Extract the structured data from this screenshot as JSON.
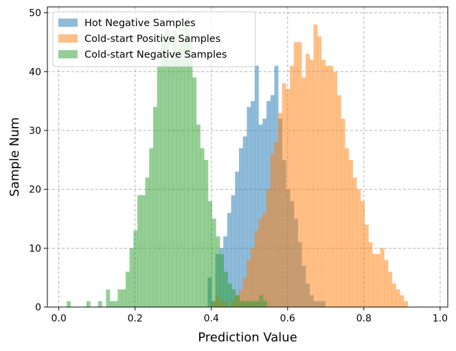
{
  "chart_data": {
    "type": "histogram",
    "title": "",
    "xlabel": "Prediction Value",
    "ylabel": "Sample Num",
    "xlim": [
      -0.03,
      1.02
    ],
    "ylim": [
      0,
      51
    ],
    "xticks": [
      "0.0",
      "0.2",
      "0.4",
      "0.6",
      "0.8",
      "1.0"
    ],
    "yticks": [
      "0",
      "10",
      "20",
      "30",
      "40",
      "50"
    ],
    "grid": true,
    "legend_position": "top-left",
    "series": [
      {
        "name": "Hot Negative Samples",
        "color": "#1f77b4",
        "alpha": 0.5,
        "bin_start": 0.39,
        "bin_width": 0.0103,
        "counts": [
          5,
          1,
          9,
          10,
          12,
          16,
          19,
          23,
          27,
          29,
          34,
          35,
          41,
          31,
          32,
          35,
          36,
          41,
          32,
          25,
          20,
          18,
          15,
          11,
          7,
          4,
          2,
          1,
          1,
          1
        ]
      },
      {
        "name": "Cold-start Positive Samples",
        "color": "#ff7f0e",
        "alpha": 0.5,
        "bin_start": 0.4,
        "bin_width": 0.0103,
        "counts": [
          1,
          2,
          1,
          1,
          0,
          1,
          2,
          3,
          5,
          8,
          10,
          13,
          15,
          16,
          20,
          26,
          28,
          33,
          38,
          37,
          41,
          45,
          45,
          39,
          43,
          42,
          48,
          46,
          42,
          41,
          41,
          40,
          36,
          32,
          27,
          25,
          22,
          20,
          18,
          14,
          11,
          9,
          9,
          10,
          8,
          6,
          4,
          3,
          2,
          1
        ]
      },
      {
        "name": "Cold-start Negative Samples",
        "color": "#2ca02c",
        "alpha": 0.5,
        "bin_start": 0.0,
        "bin_width": 0.0103,
        "counts": [
          0,
          0,
          1,
          0,
          0,
          0,
          0,
          1,
          0,
          0,
          1,
          0,
          3,
          1,
          1,
          3,
          3,
          6,
          10,
          13,
          19,
          19,
          22,
          27,
          34,
          41,
          46,
          47,
          42,
          47,
          42,
          45,
          48,
          45,
          39,
          31,
          27,
          25,
          18,
          15,
          12,
          9,
          6,
          4,
          3,
          2,
          1,
          1,
          1,
          1,
          1,
          2,
          1
        ]
      }
    ]
  }
}
